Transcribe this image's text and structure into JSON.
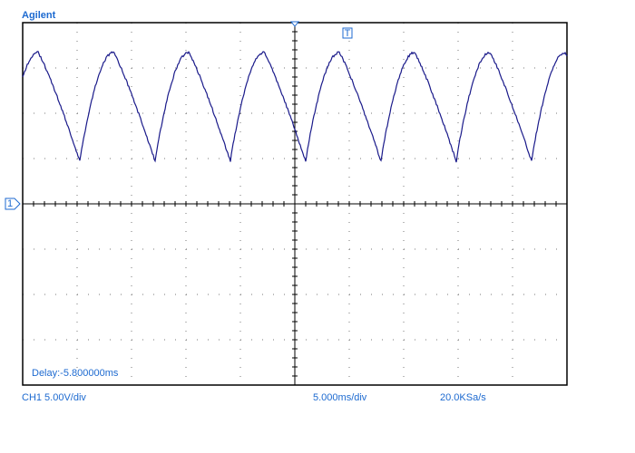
{
  "header": {
    "brand": "Agilent"
  },
  "markers": {
    "trigger": "T",
    "channel": "1"
  },
  "display": {
    "delay": "Delay:-5.800000ms"
  },
  "status": {
    "channel_scale": "CH1 5.00V/div",
    "time_scale": "5.000ms/div",
    "sample_rate": "20.0KSa/s"
  }
}
